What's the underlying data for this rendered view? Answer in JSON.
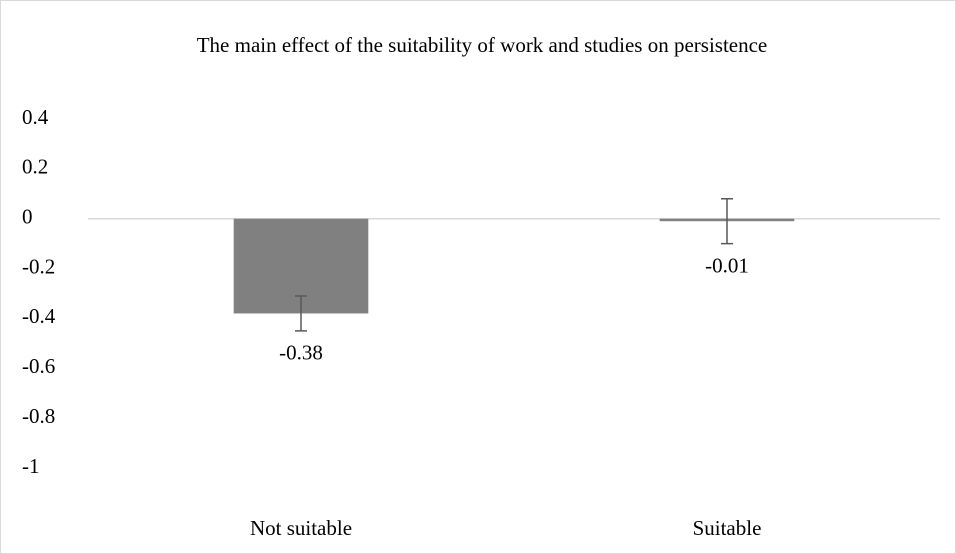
{
  "chart_data": {
    "type": "bar",
    "title": "The main effect of the suitability of work and studies on persistence",
    "categories": [
      "Not suitable",
      "Suitable"
    ],
    "values": [
      -0.38,
      -0.01
    ],
    "errors": [
      0.07,
      0.09
    ],
    "color": "#808080",
    "ylim": [
      -1,
      0.4
    ],
    "yticks": [
      0.4,
      0.2,
      0,
      -0.2,
      -0.4,
      -0.6,
      -0.8,
      -1
    ],
    "grid": false
  }
}
